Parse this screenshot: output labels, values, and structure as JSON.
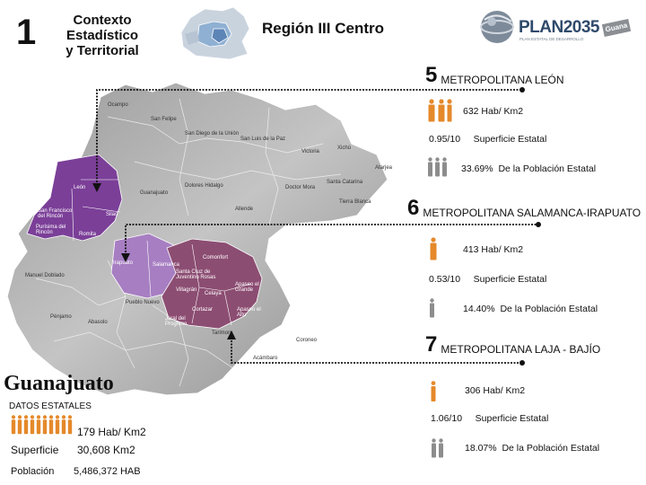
{
  "header": {
    "number": "1",
    "title_line1": "Contexto Estadístico",
    "title_line2": "y Territorial",
    "region": "Región III Centro",
    "logo_text": "PLAN2035",
    "logo_subtext": "PLAN ESTATAL DE DESARROLLO",
    "logo_badge": "Guana"
  },
  "metros": [
    {
      "number": "5",
      "name": "METROPOLITANA LEÓN",
      "density": "632 Hab/ Km2",
      "surface": "0.95/10",
      "surface_label": "Superficie Estatal",
      "population": "33.69%",
      "population_label": "De la Población Estatal",
      "color": "#7b3f98"
    },
    {
      "number": "6",
      "name": "METROPOLITANA SALAMANCA-IRAPUATO",
      "density": "413 Hab/ Km2",
      "surface": "0.53/10",
      "surface_label": "Superficie Estatal",
      "population": "14.40%",
      "population_label": "De la Población Estatal",
      "color": "#a77ec2"
    },
    {
      "number": "7",
      "name": "METROPOLITANA LAJA - BAJÍO",
      "density": "306 Hab/ Km2",
      "surface": "1.06/10",
      "surface_label": "Superficie Estatal",
      "population": "18.07%",
      "population_label": "De la Población Estatal",
      "color": "#8c4d72"
    }
  ],
  "state": {
    "name": "Guanajuato",
    "data_label": "DATOS ESTATALES",
    "density": "179 Hab/ Km2",
    "surface_label": "Superficie",
    "surface_value": "30,608 Km2",
    "population_label": "Población",
    "population_value": "5,486,372 HAB"
  },
  "map_labels": {
    "leon": "León",
    "san_francisco": "San Francisco del Rincón",
    "purisima": "Purísima del Rincón",
    "silao": "Silao",
    "romita": "Romita",
    "irapuato": "Irapuato",
    "salamanca": "Salamanca",
    "celaya": "Celaya",
    "villagran": "Villagrán",
    "cortazar": "Cortazar",
    "santa_cruz": "Santa Cruz de Juventino Rosas",
    "apaseo_grande": "Apaseo el Grande",
    "apaseo_alto": "Apaseo el Alto",
    "comonfort": "Comonfort",
    "tarimoro": "Tarimoro",
    "pueblo_nuevo": "Pueblo Nuevo",
    "jaral": "Jaral del Progreso",
    "ocampo": "Ocampo",
    "san_felipe": "San Felipe",
    "san_diego": "San Diego de la Unión",
    "san_luis": "San Luis de la Paz",
    "dolores": "Dolores Hidalgo",
    "guanajuato": "Guanajuato",
    "allende": "Allende",
    "manuel_doblado": "Manuel Doblado",
    "penjamo": "Pénjamo",
    "abasolo": "Abasolo",
    "acambaro": "Acámbaro",
    "victoria": "Victoria",
    "xichu": "Xichú",
    "atarjea": "Atarjea",
    "doctor_mora": "Doctor Mora",
    "santa_catarina": "Santa Catarina",
    "tierra_blanca": "Tierra Blanca",
    "coroneo": "Coroneo"
  }
}
